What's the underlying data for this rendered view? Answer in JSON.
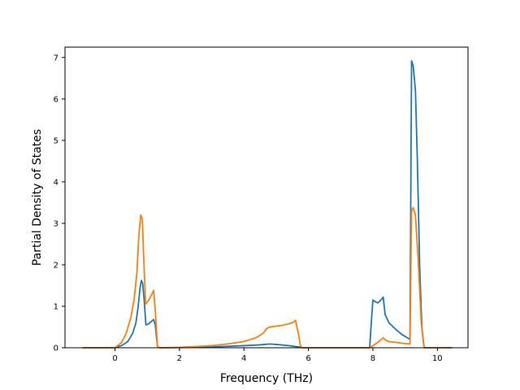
{
  "chart_data": {
    "type": "line",
    "xlabel": "Frequency (THz)",
    "ylabel": "Partial Density of States",
    "xlim": [
      -1.55,
      10.95
    ],
    "ylim": [
      0,
      7.25
    ],
    "grid": false,
    "x_ticks": [
      0,
      2,
      4,
      6,
      8,
      10
    ],
    "y_ticks": [
      0,
      1,
      2,
      3,
      4,
      5,
      6,
      7
    ],
    "colors": [
      "#1f77b4",
      "#ff7f0e"
    ],
    "series": [
      {
        "color": "#1f77b4",
        "points": [
          [
            -1.0,
            0
          ],
          [
            0.0,
            0
          ],
          [
            0.2,
            0.05
          ],
          [
            0.4,
            0.15
          ],
          [
            0.55,
            0.35
          ],
          [
            0.65,
            0.6
          ],
          [
            0.72,
            1.0
          ],
          [
            0.78,
            1.45
          ],
          [
            0.82,
            1.62
          ],
          [
            0.86,
            1.55
          ],
          [
            0.9,
            1.2
          ],
          [
            0.96,
            0.55
          ],
          [
            1.05,
            0.58
          ],
          [
            1.15,
            0.65
          ],
          [
            1.2,
            0.68
          ],
          [
            1.25,
            0.55
          ],
          [
            1.32,
            0.02
          ],
          [
            1.4,
            0
          ],
          [
            2.0,
            0.005
          ],
          [
            3.0,
            0.02
          ],
          [
            4.0,
            0.05
          ],
          [
            4.5,
            0.07
          ],
          [
            4.8,
            0.09
          ],
          [
            5.0,
            0.08
          ],
          [
            5.4,
            0.05
          ],
          [
            5.7,
            0.02
          ],
          [
            5.8,
            0
          ],
          [
            7.9,
            0
          ],
          [
            7.95,
            0.6
          ],
          [
            8.0,
            1.15
          ],
          [
            8.05,
            1.12
          ],
          [
            8.15,
            1.08
          ],
          [
            8.25,
            1.15
          ],
          [
            8.32,
            1.22
          ],
          [
            8.38,
            0.8
          ],
          [
            8.5,
            0.6
          ],
          [
            8.7,
            0.45
          ],
          [
            8.9,
            0.32
          ],
          [
            9.05,
            0.25
          ],
          [
            9.15,
            0.2
          ],
          [
            9.2,
            6.92
          ],
          [
            9.25,
            6.8
          ],
          [
            9.32,
            6.2
          ],
          [
            9.38,
            4.5
          ],
          [
            9.45,
            2.0
          ],
          [
            9.52,
            0.5
          ],
          [
            9.58,
            0.05
          ],
          [
            9.6,
            0
          ],
          [
            10.45,
            0
          ]
        ]
      },
      {
        "color": "#ff7f0e",
        "points": [
          [
            -1.0,
            0
          ],
          [
            0.0,
            0
          ],
          [
            0.2,
            0.12
          ],
          [
            0.35,
            0.35
          ],
          [
            0.5,
            0.75
          ],
          [
            0.6,
            1.2
          ],
          [
            0.68,
            1.8
          ],
          [
            0.74,
            2.7
          ],
          [
            0.8,
            3.2
          ],
          [
            0.85,
            3.1
          ],
          [
            0.88,
            2.4
          ],
          [
            0.95,
            1.05
          ],
          [
            1.05,
            1.15
          ],
          [
            1.15,
            1.3
          ],
          [
            1.2,
            1.38
          ],
          [
            1.25,
            0.9
          ],
          [
            1.32,
            0.02
          ],
          [
            1.4,
            0
          ],
          [
            2.0,
            0.01
          ],
          [
            2.5,
            0.03
          ],
          [
            3.0,
            0.05
          ],
          [
            3.5,
            0.09
          ],
          [
            4.0,
            0.15
          ],
          [
            4.4,
            0.25
          ],
          [
            4.6,
            0.35
          ],
          [
            4.7,
            0.46
          ],
          [
            4.8,
            0.5
          ],
          [
            5.2,
            0.54
          ],
          [
            5.5,
            0.6
          ],
          [
            5.6,
            0.66
          ],
          [
            5.7,
            0.3
          ],
          [
            5.75,
            0.05
          ],
          [
            5.8,
            0
          ],
          [
            7.9,
            0
          ],
          [
            8.0,
            0.05
          ],
          [
            8.1,
            0.1
          ],
          [
            8.2,
            0.16
          ],
          [
            8.32,
            0.24
          ],
          [
            8.4,
            0.18
          ],
          [
            8.5,
            0.15
          ],
          [
            8.7,
            0.13
          ],
          [
            9.0,
            0.1
          ],
          [
            9.15,
            0.09
          ],
          [
            9.2,
            3.3
          ],
          [
            9.25,
            3.38
          ],
          [
            9.32,
            3.2
          ],
          [
            9.4,
            2.2
          ],
          [
            9.5,
            0.6
          ],
          [
            9.58,
            0.05
          ],
          [
            9.6,
            0
          ],
          [
            10.45,
            0
          ]
        ]
      }
    ]
  }
}
